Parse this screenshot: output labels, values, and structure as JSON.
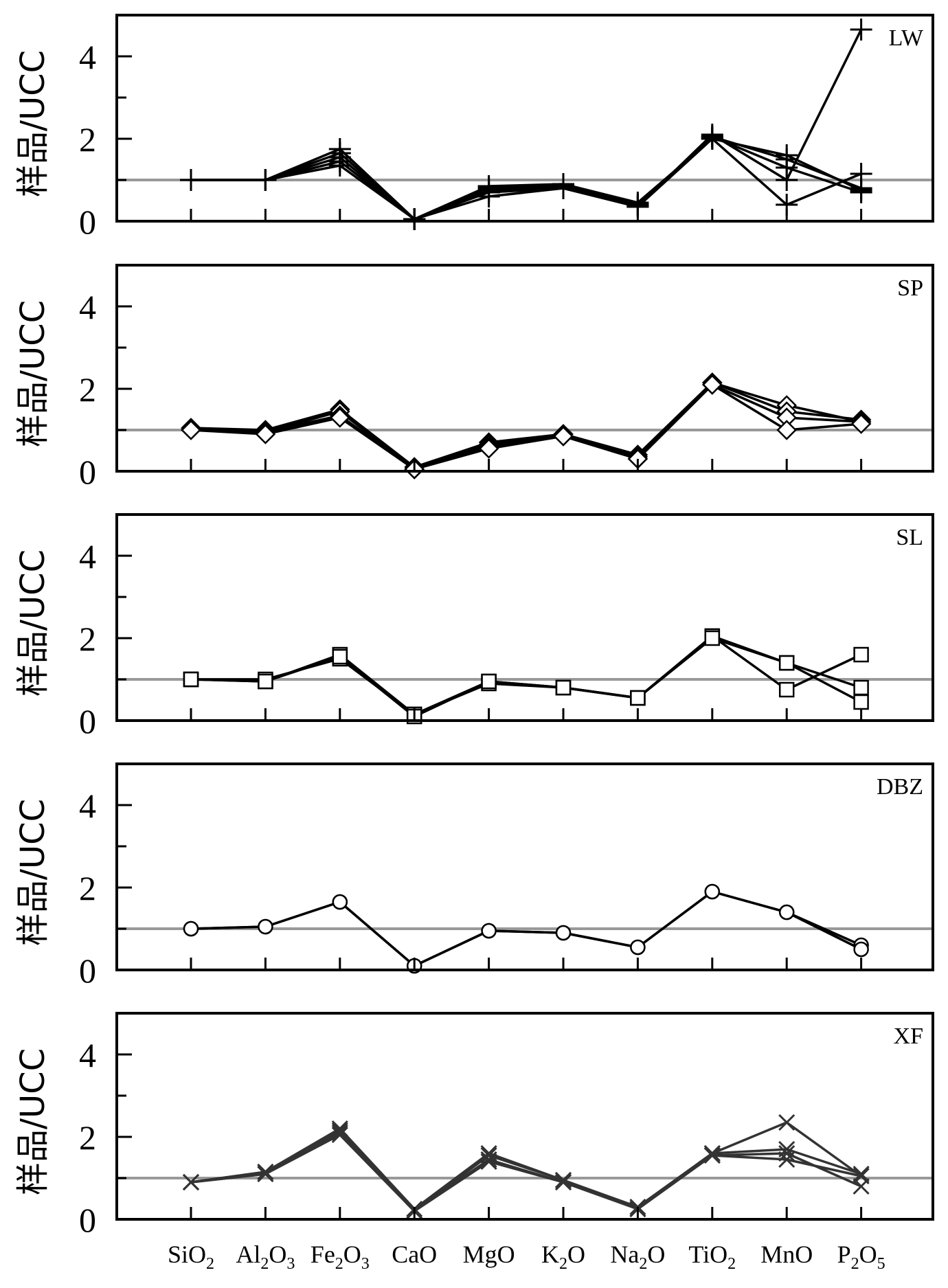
{
  "chart_data": [
    {
      "type": "line",
      "label": "LW",
      "ylabel": "样品/UCC",
      "ylim": [
        0,
        5
      ],
      "yticks": [
        "0",
        "2",
        "4"
      ],
      "marker": "plus",
      "categories": [
        "SiO2",
        "Al2O3",
        "Fe2O3",
        "CaO",
        "MgO",
        "K2O",
        "Na2O",
        "TiO2",
        "MnO",
        "P2O5"
      ],
      "reference_line": 1,
      "series": [
        {
          "values": [
            1.0,
            1.0,
            1.75,
            0.05,
            0.85,
            0.9,
            0.45,
            2.0,
            1.6,
            0.75
          ]
        },
        {
          "values": [
            1.0,
            1.0,
            1.65,
            0.05,
            0.8,
            0.85,
            0.4,
            2.05,
            1.5,
            0.8
          ]
        },
        {
          "values": [
            1.0,
            1.0,
            1.55,
            0.05,
            0.75,
            0.85,
            0.4,
            2.05,
            1.3,
            0.7
          ]
        },
        {
          "values": [
            1.0,
            1.0,
            1.45,
            0.05,
            0.7,
            0.8,
            0.35,
            2.1,
            1.0,
            4.65
          ]
        },
        {
          "values": [
            1.0,
            1.0,
            1.35,
            0.05,
            0.6,
            0.8,
            0.35,
            2.0,
            0.4,
            1.15
          ]
        }
      ]
    },
    {
      "type": "line",
      "label": "SP",
      "ylabel": "样品/UCC",
      "ylim": [
        0,
        5
      ],
      "yticks": [
        "0",
        "2",
        "4"
      ],
      "marker": "diamond",
      "categories": [
        "SiO2",
        "Al2O3",
        "Fe2O3",
        "CaO",
        "MgO",
        "K2O",
        "Na2O",
        "TiO2",
        "MnO",
        "P2O5"
      ],
      "reference_line": 1,
      "series": [
        {
          "values": [
            1.05,
            1.0,
            1.5,
            0.1,
            0.7,
            0.9,
            0.4,
            2.15,
            1.6,
            1.2
          ]
        },
        {
          "values": [
            1.0,
            0.95,
            1.45,
            0.05,
            0.65,
            0.9,
            0.35,
            2.15,
            1.45,
            1.25
          ]
        },
        {
          "values": [
            1.05,
            0.95,
            1.35,
            0.05,
            0.6,
            0.85,
            0.3,
            2.1,
            1.3,
            1.2
          ]
        },
        {
          "values": [
            1.0,
            0.9,
            1.3,
            0.05,
            0.55,
            0.85,
            0.3,
            2.1,
            1.0,
            1.15
          ]
        }
      ]
    },
    {
      "type": "line",
      "label": "SL",
      "ylabel": "样品/UCC",
      "ylim": [
        0,
        5
      ],
      "yticks": [
        "0",
        "2",
        "4"
      ],
      "marker": "square",
      "categories": [
        "SiO2",
        "Al2O3",
        "Fe2O3",
        "CaO",
        "MgO",
        "K2O",
        "Na2O",
        "TiO2",
        "MnO",
        "P2O5"
      ],
      "reference_line": 1,
      "series": [
        {
          "values": [
            1.0,
            0.95,
            1.6,
            0.15,
            0.95,
            0.8,
            0.55,
            2.05,
            1.4,
            0.45
          ]
        },
        {
          "values": [
            1.0,
            1.0,
            1.5,
            0.15,
            0.9,
            0.8,
            0.55,
            2.05,
            0.75,
            1.6
          ]
        },
        {
          "values": [
            1.0,
            0.95,
            1.55,
            0.1,
            0.95,
            0.8,
            0.55,
            2.0,
            1.4,
            0.8
          ]
        }
      ]
    },
    {
      "type": "line",
      "label": "DBZ",
      "ylabel": "样品/UCC",
      "ylim": [
        0,
        5
      ],
      "yticks": [
        "0",
        "2",
        "4"
      ],
      "marker": "circle",
      "categories": [
        "SiO2",
        "Al2O3",
        "Fe2O3",
        "CaO",
        "MgO",
        "K2O",
        "Na2O",
        "TiO2",
        "MnO",
        "P2O5"
      ],
      "reference_line": 1,
      "series": [
        {
          "values": [
            1.0,
            1.05,
            1.65,
            0.1,
            0.95,
            0.9,
            0.55,
            1.9,
            1.4,
            0.6
          ]
        },
        {
          "values": [
            1.0,
            1.05,
            1.65,
            0.1,
            0.95,
            0.9,
            0.55,
            1.9,
            1.4,
            0.5
          ]
        }
      ]
    },
    {
      "type": "line",
      "label": "XF",
      "ylabel": "样品/UCC",
      "ylim": [
        0,
        5
      ],
      "yticks": [
        "0",
        "2",
        "4"
      ],
      "marker": "x",
      "categories": [
        "SiO2",
        "Al2O3",
        "Fe2O3",
        "CaO",
        "MgO",
        "K2O",
        "Na2O",
        "TiO2",
        "MnO",
        "P2O5"
      ],
      "reference_line": 1,
      "series": [
        {
          "values": [
            0.9,
            1.15,
            2.2,
            0.25,
            1.6,
            0.95,
            0.3,
            1.6,
            2.35,
            1.05
          ]
        },
        {
          "values": [
            0.9,
            1.15,
            2.15,
            0.2,
            1.55,
            0.95,
            0.25,
            1.6,
            1.7,
            1.1
          ]
        },
        {
          "values": [
            0.9,
            1.1,
            2.1,
            0.2,
            1.45,
            0.9,
            0.25,
            1.55,
            1.6,
            0.8
          ]
        },
        {
          "values": [
            0.9,
            1.1,
            2.05,
            0.2,
            1.4,
            0.9,
            0.25,
            1.55,
            1.45,
            1.05
          ]
        }
      ]
    }
  ],
  "x_axis": {
    "labels": [
      {
        "base": "SiO",
        "sub": "2",
        "tail": ""
      },
      {
        "base": "Al",
        "sub": "2",
        "tail": "O",
        "sub2": "3"
      },
      {
        "base": "Fe",
        "sub": "2",
        "tail": "O",
        "sub2": "3"
      },
      {
        "base": "CaO",
        "sub": "",
        "tail": ""
      },
      {
        "base": "MgO",
        "sub": "",
        "tail": ""
      },
      {
        "base": "K",
        "sub": "2",
        "tail": "O"
      },
      {
        "base": "Na",
        "sub": "2",
        "tail": "O"
      },
      {
        "base": "TiO",
        "sub": "2",
        "tail": ""
      },
      {
        "base": "MnO",
        "sub": "",
        "tail": ""
      },
      {
        "base": "P",
        "sub": "2",
        "tail": "O",
        "sub2": "5"
      }
    ]
  },
  "colors": {
    "axis": "#000000",
    "series": "#000000",
    "reference_line": "#999999",
    "xf_series": "#333333"
  }
}
